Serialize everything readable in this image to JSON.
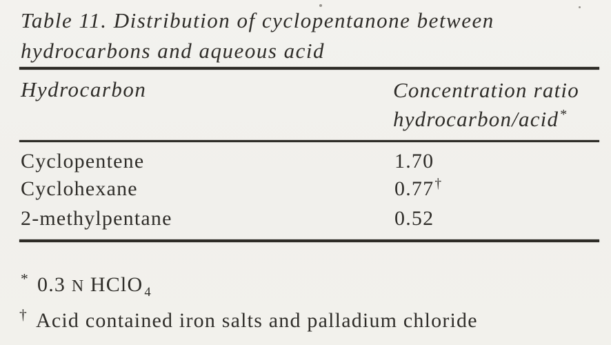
{
  "page": {
    "paper_color": "#f2f1ed",
    "ink_color": "#2f2d29",
    "rule_color": "#2e2c27"
  },
  "table": {
    "title_line1": "Table 11. Distribution of cyclopentanone between",
    "title_line2": "hydrocarbons and aqueous acid",
    "header": {
      "col1": "Hydrocarbon",
      "col2_line1": "Concentration ratio",
      "col2_line2": "hydrocarbon/acid",
      "col2_footnote_marker": "*"
    },
    "rows": [
      {
        "name": "Cyclopentene",
        "value": "1.70",
        "marker": ""
      },
      {
        "name": "Cyclohexane",
        "value": "0.77",
        "marker": "†"
      },
      {
        "name": "2-methylpentane",
        "value": "0.52",
        "marker": ""
      }
    ],
    "footnotes": {
      "acid": {
        "marker": "*",
        "amount": "0.3",
        "normality": "N",
        "compound": "HClO",
        "subscript": "4"
      },
      "iron": {
        "marker": "†",
        "text": "Acid contained iron salts and palladium chloride"
      }
    }
  }
}
